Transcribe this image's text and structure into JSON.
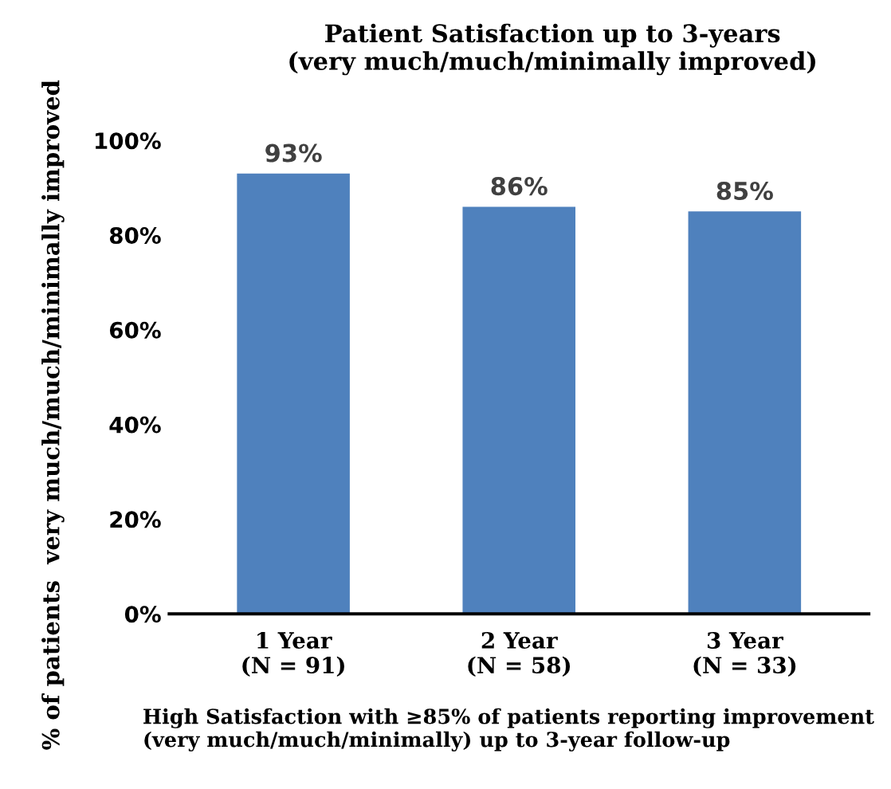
{
  "chart_data": {
    "type": "bar",
    "title": "Patient Satisfaction up to 3-years\n(very much/much/minimally improved)",
    "ylabel": "% of patients  very much/much/minimally improved",
    "categories": [
      "1 Year\n(N = 91)",
      "2 Year\n(N = 58)",
      "3 Year\n(N = 33)"
    ],
    "values": [
      93,
      86,
      85
    ],
    "color": "#4f81bd",
    "value_labels": [
      "93%",
      "86%",
      "85%"
    ],
    "ylim": [
      0,
      100
    ],
    "yticks": [
      {
        "value": 0,
        "label": "0%"
      },
      {
        "value": 20,
        "label": "20%"
      },
      {
        "value": 40,
        "label": "40%"
      },
      {
        "value": 60,
        "label": "60%"
      },
      {
        "value": 80,
        "label": "80%"
      },
      {
        "value": 100,
        "label": "100%"
      }
    ],
    "grid": false,
    "legend": false,
    "annotations": [
      "High Satisfaction with ≥85% of patients reporting improvement\n(very much/much/minimally) up to 3-year follow-up"
    ]
  }
}
